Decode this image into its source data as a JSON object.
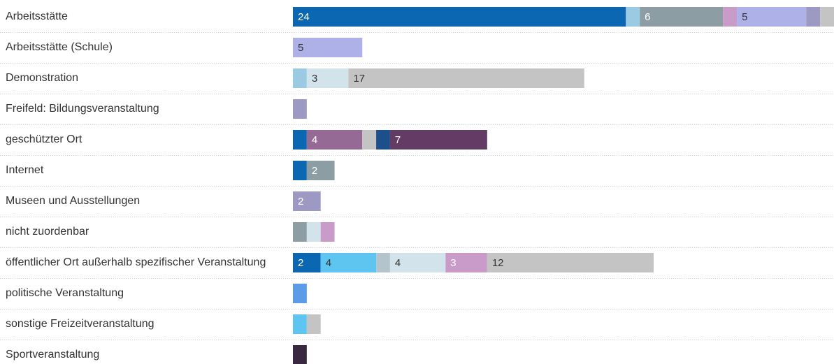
{
  "chart_data": {
    "type": "bar",
    "orientation": "horizontal",
    "stacked": true,
    "xlim": [
      0,
      39
    ],
    "grid": false,
    "legend": "none",
    "rows": [
      {
        "category": "Arbeitsstätte",
        "segments": [
          {
            "value": 24,
            "color": "#0b67b2",
            "label": "24",
            "label_color": "#ffffff"
          },
          {
            "value": 1,
            "color": "#9bcbe3"
          },
          {
            "value": 6,
            "color": "#8c9ea3",
            "label": "6",
            "label_color": "#ffffff"
          },
          {
            "value": 1,
            "color": "#c99bc9"
          },
          {
            "value": 5,
            "color": "#aeb0e8",
            "label": "5",
            "label_color": "#333333"
          },
          {
            "value": 1,
            "color": "#9c9ac2"
          },
          {
            "value": 1,
            "color": "#c4c4c4"
          },
          {
            "value": 0.3,
            "color": "#2c4f8c"
          }
        ]
      },
      {
        "category": "Arbeitsstätte (Schule)",
        "segments": [
          {
            "value": 5,
            "color": "#aeb0e8",
            "label": "5",
            "label_color": "#333333"
          }
        ]
      },
      {
        "category": "Demonstration",
        "segments": [
          {
            "value": 1,
            "color": "#9bcbe3"
          },
          {
            "value": 3,
            "color": "#d3e3ec",
            "label": "3",
            "label_color": "#333333"
          },
          {
            "value": 17,
            "color": "#c4c4c4",
            "label": "17",
            "label_color": "#333333"
          }
        ]
      },
      {
        "category": "Freifeld: Bildungsveranstaltung",
        "segments": [
          {
            "value": 1,
            "color": "#9c9ac2"
          }
        ]
      },
      {
        "category": "geschützter Ort",
        "segments": [
          {
            "value": 1,
            "color": "#0b67b2"
          },
          {
            "value": 4,
            "color": "#956b95",
            "label": "4",
            "label_color": "#ffffff"
          },
          {
            "value": 1,
            "color": "#c4c4c4"
          },
          {
            "value": 1,
            "color": "#1d4f8a"
          },
          {
            "value": 7,
            "color": "#633c63",
            "label": "7",
            "label_color": "#ffffff"
          }
        ]
      },
      {
        "category": "Internet",
        "segments": [
          {
            "value": 1,
            "color": "#0b67b2"
          },
          {
            "value": 2,
            "color": "#8c9ea3",
            "label": "2",
            "label_color": "#ffffff"
          }
        ]
      },
      {
        "category": "Museen und Ausstellungen",
        "segments": [
          {
            "value": 2,
            "color": "#9c9ac2",
            "label": "2",
            "label_color": "#ffffff"
          }
        ]
      },
      {
        "category": "nicht zuordenbar",
        "segments": [
          {
            "value": 1,
            "color": "#8c9ea3"
          },
          {
            "value": 1,
            "color": "#d3e3ec"
          },
          {
            "value": 1,
            "color": "#c99bc9"
          }
        ]
      },
      {
        "category": "öffentlicher Ort außerhalb spezifischer Veranstaltung",
        "segments": [
          {
            "value": 2,
            "color": "#0b67b2",
            "label": "2",
            "label_color": "#ffffff"
          },
          {
            "value": 4,
            "color": "#5ec4f0",
            "label": "4",
            "label_color": "#333333"
          },
          {
            "value": 1,
            "color": "#b4c4cc"
          },
          {
            "value": 4,
            "color": "#d3e3ec",
            "label": "4",
            "label_color": "#333333"
          },
          {
            "value": 3,
            "color": "#c99bc9",
            "label": "3",
            "label_color": "#ffffff"
          },
          {
            "value": 12,
            "color": "#c4c4c4",
            "label": "12",
            "label_color": "#333333"
          }
        ]
      },
      {
        "category": "politische Veranstaltung",
        "segments": [
          {
            "value": 1,
            "color": "#5b9be8"
          }
        ]
      },
      {
        "category": "sonstige Freizeitveranstaltung",
        "segments": [
          {
            "value": 1,
            "color": "#5ec4f0"
          },
          {
            "value": 1,
            "color": "#c4c4c4"
          }
        ]
      },
      {
        "category": "Sportveranstaltung",
        "segments": [
          {
            "value": 1,
            "color": "#3a2840"
          }
        ]
      }
    ]
  }
}
